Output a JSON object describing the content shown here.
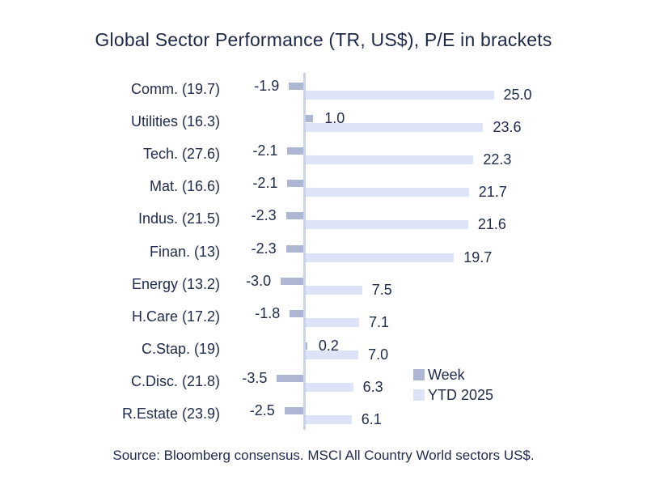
{
  "title": "Global Sector Performance (TR, US$), P/E in brackets",
  "source": "Source: Bloomberg consensus. MSCI All Country World sectors US$.",
  "colors": {
    "week_bar": "#adb7d4",
    "ytd_bar": "#dde4f8",
    "axis": "#c8d4ee",
    "text": "#202b4e"
  },
  "legend": [
    {
      "label": "Week",
      "color": "#adb7d4"
    },
    {
      "label": "YTD 2025",
      "color": "#dde4f8"
    }
  ],
  "chart_data": {
    "type": "bar",
    "orientation": "horizontal",
    "title": "Global Sector Performance (TR, US$), P/E in brackets",
    "xlabel": "",
    "ylabel": "",
    "xlim": [
      -4,
      28
    ],
    "grid": false,
    "legend_position": "inside-bottom-right",
    "categories": [
      "Comm. (19.7)",
      "Utilities (16.3)",
      "Tech. (27.6)",
      "Mat. (16.6)",
      "Indus. (21.5)",
      "Finan. (13)",
      "Energy (13.2)",
      "H.Care (17.2)",
      "C.Stap. (19)",
      "C.Disc. (21.8)",
      "R.Estate (23.9)"
    ],
    "series": [
      {
        "name": "Week",
        "values": [
          -1.9,
          1.0,
          -2.1,
          -2.1,
          -2.3,
          -2.3,
          -3.0,
          -1.8,
          0.2,
          -3.5,
          -2.5
        ]
      },
      {
        "name": "YTD 2025",
        "values": [
          25.0,
          23.6,
          22.3,
          21.7,
          21.6,
          19.7,
          7.5,
          7.1,
          7.0,
          6.3,
          6.1
        ]
      }
    ]
  }
}
